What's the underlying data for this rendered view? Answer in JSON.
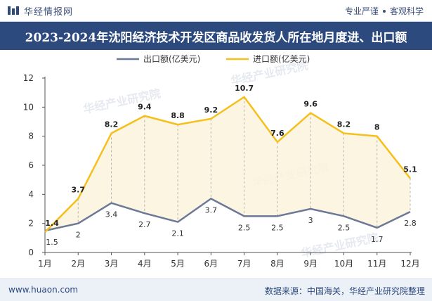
{
  "header": {
    "brand": "华经情报网",
    "tagline_left": "专业严谨",
    "tagline_right": "客观科学"
  },
  "title": "2023-2024年沈阳经济技术开发区商品收发货人所在地月度进、出口额",
  "footer": {
    "url": "www.huaon.com",
    "source": "数据来源：中国海关，华经产业研究院整理"
  },
  "watermarks": [
    "华经产业研究院",
    "华经产业研究院",
    "华经产业研究院",
    "华经产业研究院"
  ],
  "colors": {
    "export": "#6b7896",
    "import": "#f5bf1c",
    "title_bg": "#2c4a7e"
  },
  "chart_data": {
    "type": "line",
    "categories": [
      "1月",
      "2月",
      "3月",
      "4月",
      "5月",
      "6月",
      "7月",
      "8月",
      "9月",
      "10月",
      "11月",
      "12月"
    ],
    "series": [
      {
        "name": "出口额(亿美元)",
        "values": [
          1.5,
          2,
          3.4,
          2.7,
          2.1,
          3.7,
          2.5,
          2.5,
          3,
          2.5,
          1.7,
          2.8
        ]
      },
      {
        "name": "进口额(亿美元)",
        "values": [
          1.4,
          3.7,
          8.2,
          9.4,
          8.8,
          9.2,
          10.7,
          7.6,
          9.6,
          8.2,
          8,
          5.1
        ]
      }
    ],
    "ylim": [
      0,
      12
    ],
    "yticks": [
      0,
      2,
      4,
      6,
      8,
      10,
      12
    ],
    "legend": "top-center",
    "grid": false
  }
}
